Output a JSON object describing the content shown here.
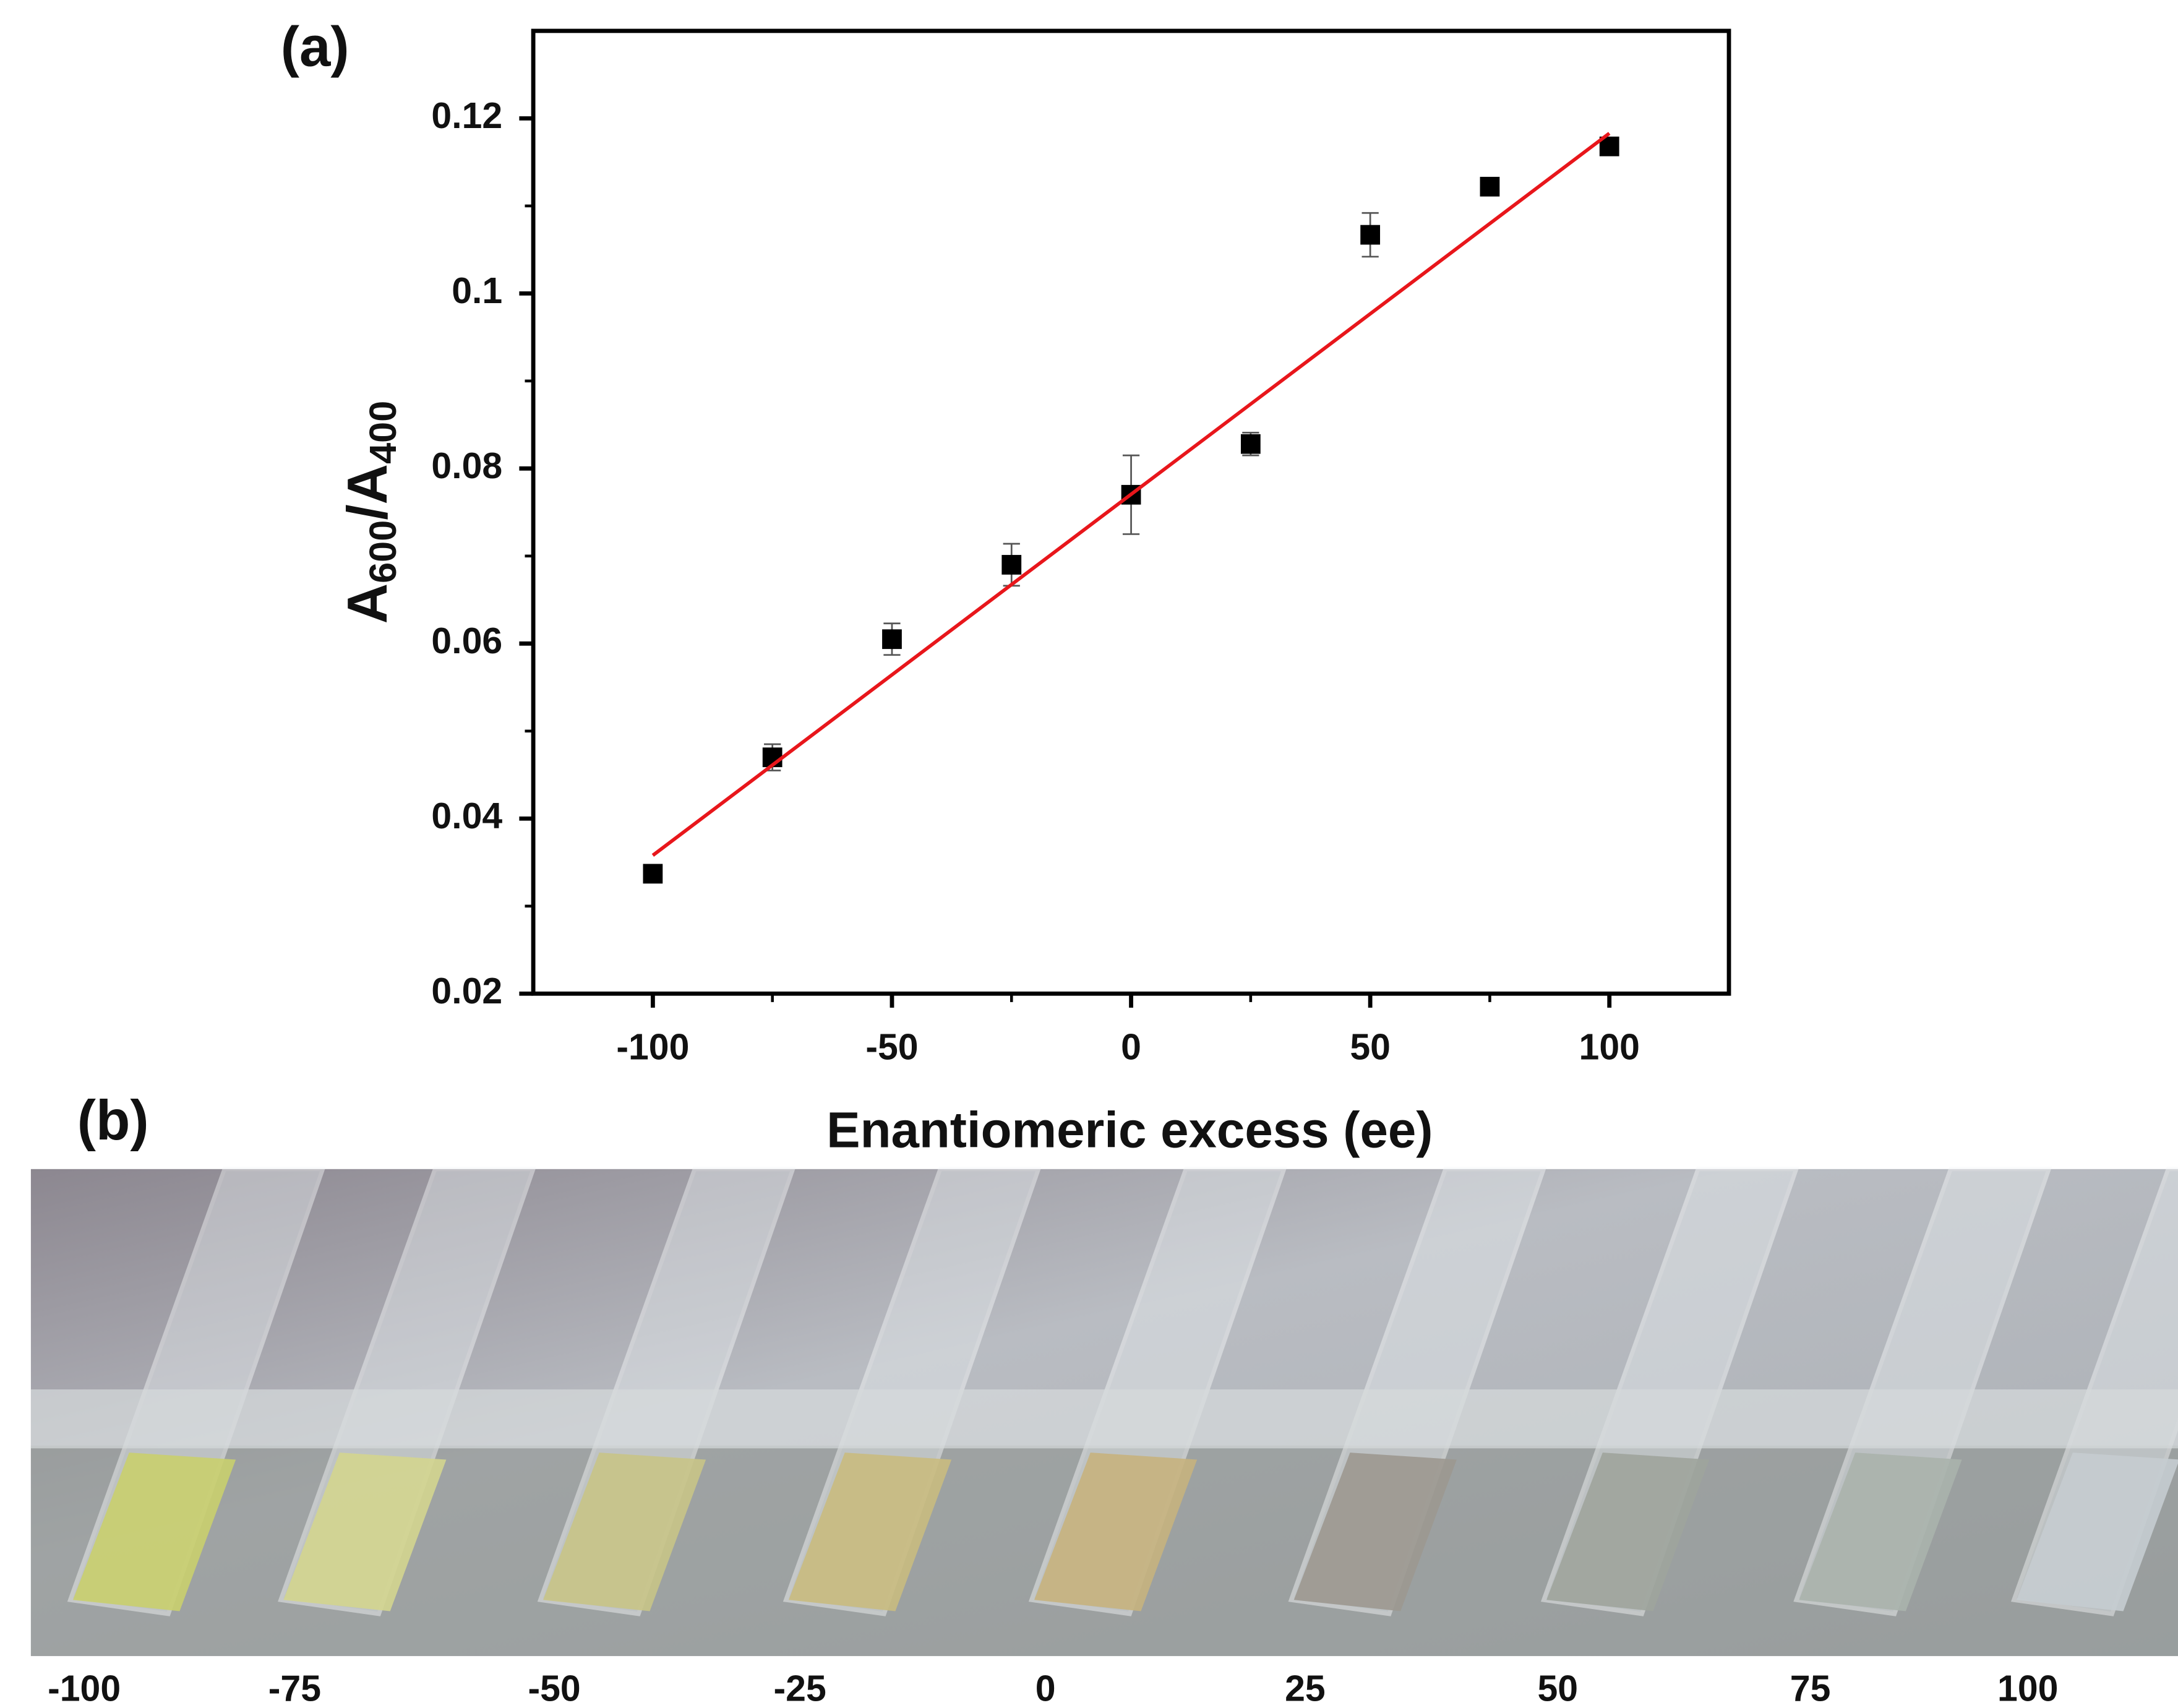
{
  "chart_data": {
    "type": "scatter",
    "panel_label": "(a)",
    "y_label_parts": [
      "A",
      "600",
      "/A",
      "400"
    ],
    "x_label": "Enantiomeric excess (ee)",
    "xlim": [
      -125,
      125
    ],
    "xticks": [
      -100,
      -50,
      0,
      50,
      100
    ],
    "ylim": [
      0.02,
      0.13
    ],
    "yticks": [
      0.02,
      0.04,
      0.06,
      0.08,
      0.1,
      0.12
    ],
    "series": [
      {
        "marker": "square",
        "color": "#000000",
        "x": [
          -100,
          -75,
          -50,
          -25,
          0,
          25,
          50,
          75,
          100
        ],
        "values": [
          0.0337,
          0.047,
          0.0605,
          0.069,
          0.077,
          0.0828,
          0.1067,
          0.1122,
          0.1168
        ],
        "errors": [
          0.001,
          0.0015,
          0.0018,
          0.0024,
          0.0045,
          0.0013,
          0.0025,
          0.001,
          0.0005
        ]
      },
      {
        "marker": "line",
        "color": "#e8161b",
        "x": [
          -100,
          100
        ],
        "values": [
          0.0358,
          0.1183
        ]
      }
    ]
  },
  "panel_b": {
    "panel_label": "(b)",
    "labels": [
      "-100",
      "-75",
      "-50",
      "-25",
      "0",
      "25",
      "50",
      "75",
      "100"
    ]
  }
}
